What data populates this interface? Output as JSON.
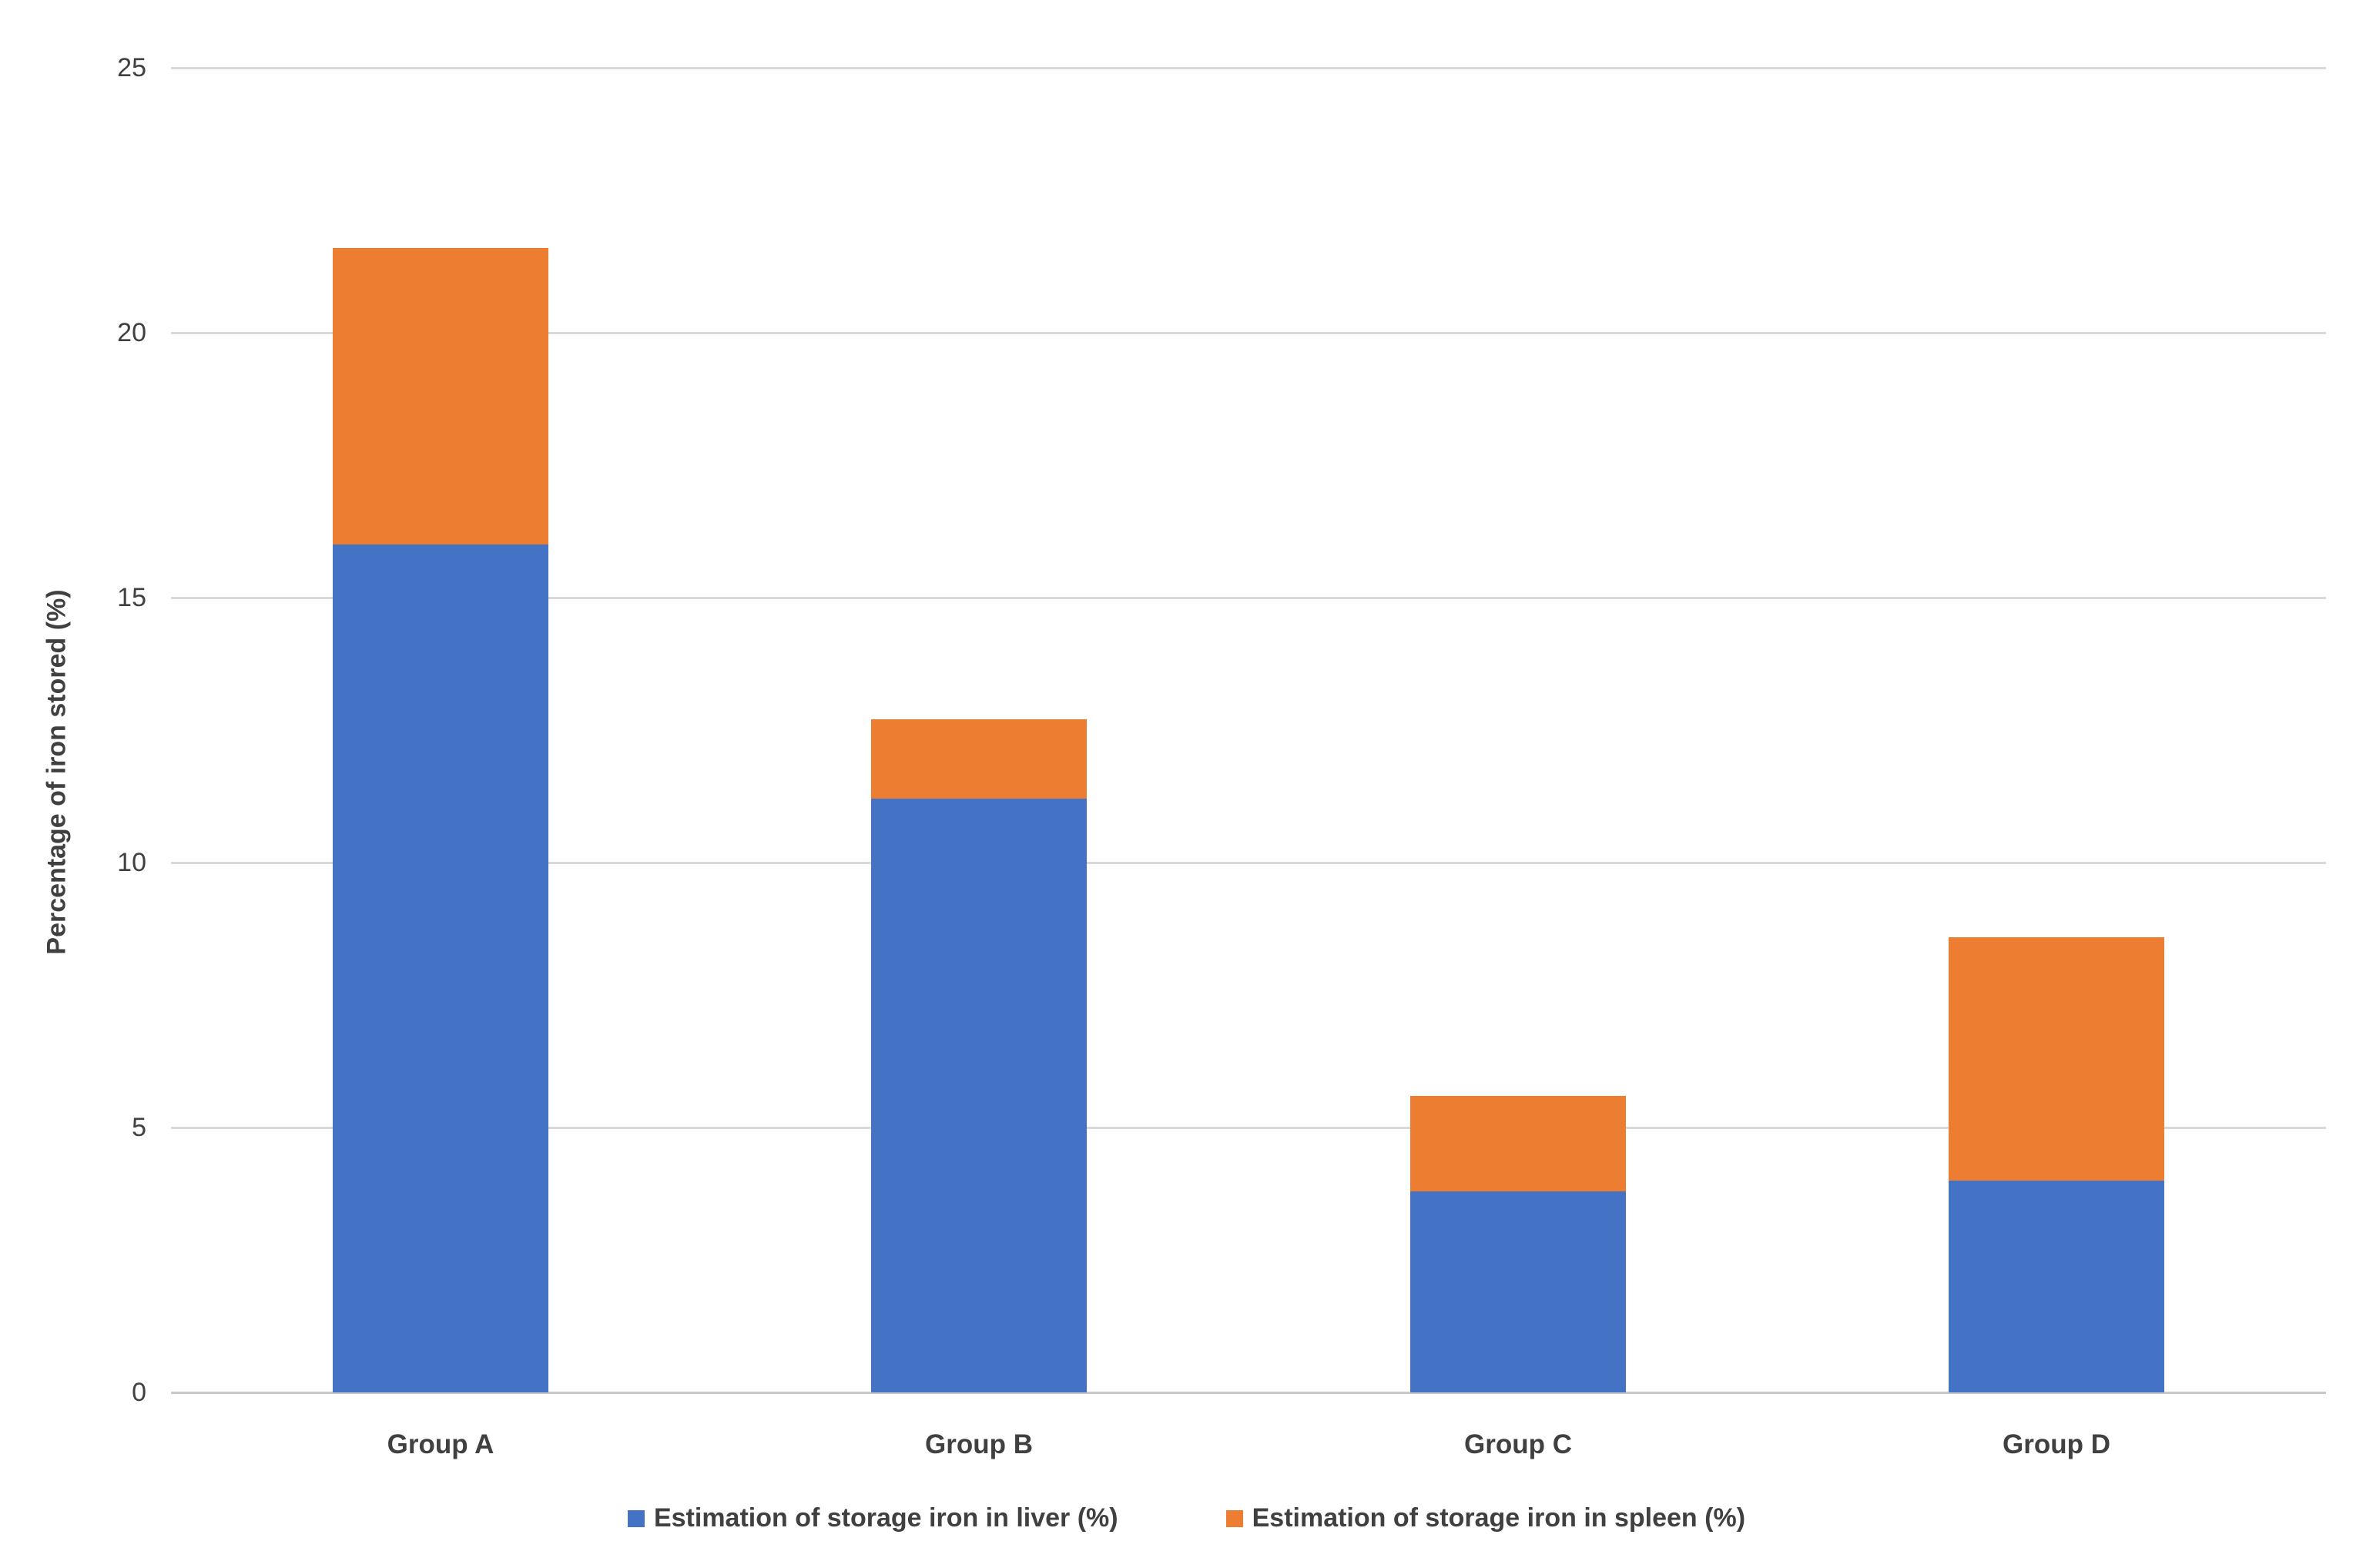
{
  "chart_data": {
    "type": "bar",
    "stacked": true,
    "title": "",
    "xlabel": "",
    "ylabel": "Percentage of iron stored (%)",
    "categories": [
      "Group A",
      "Group B",
      "Group C",
      "Group D"
    ],
    "series": [
      {
        "name": "Estimation of storage iron in liver (%)",
        "color": "#4472C4",
        "values": [
          16.0,
          11.2,
          3.8,
          4.0
        ]
      },
      {
        "name": "Estimation of storage iron in spleen (%)",
        "color": "#ED7D31",
        "values": [
          5.6,
          1.5,
          1.8,
          4.6
        ]
      }
    ],
    "stack_totals": [
      21.6,
      12.7,
      5.6,
      8.6
    ],
    "ylim": [
      0,
      25
    ],
    "ytick_step": 5,
    "y_tick_labels": [
      "0",
      "5",
      "10",
      "15",
      "20",
      "25"
    ],
    "grid": true,
    "legend_position": "bottom",
    "colors": {
      "gridline": "#D9D9D9",
      "axis_baseline": "#C9C9C9",
      "text": "#404040"
    }
  }
}
